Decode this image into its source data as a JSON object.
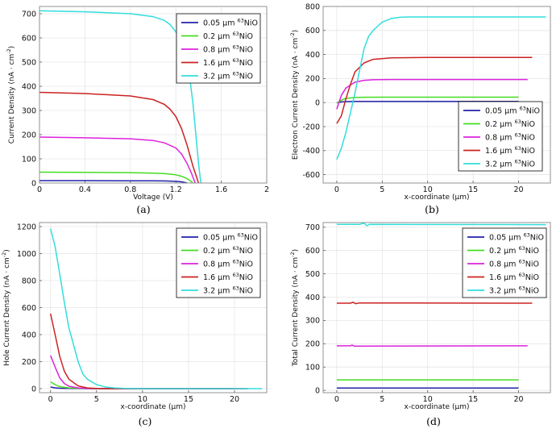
{
  "chart_data": [
    {
      "id": "a",
      "type": "line",
      "panel_label": "(a)",
      "xlabel": "Voltage (V)",
      "ylabel": "Current Density (nA · cm",
      "ylabel_sup": "-2",
      "ylabel_tail": ")",
      "xlim": [
        0,
        2
      ],
      "ylim": [
        0,
        730
      ],
      "xticks": [
        0,
        0.4,
        0.8,
        1.2,
        1.6,
        2
      ],
      "xtick_labels": [
        "0",
        "0.4",
        "0.8",
        "1.2",
        "1.6",
        "2"
      ],
      "yticks": [
        0,
        100,
        200,
        300,
        400,
        500,
        600,
        700
      ],
      "ytick_labels": [
        "0",
        "100",
        "200",
        "300",
        "400",
        "500",
        "600",
        "700"
      ],
      "legend_position": "top-right",
      "series": [
        {
          "name": "0.05 µm",
          "sup": "63",
          "suffix": "NiO",
          "color": "#2222aa",
          "x": [
            0,
            0.4,
            0.8,
            1.0,
            1.1,
            1.15,
            1.2,
            1.25,
            1.28,
            1.3
          ],
          "y": [
            10,
            10,
            9.5,
            9,
            8.5,
            8,
            7,
            5,
            2.5,
            0
          ]
        },
        {
          "name": "0.2 µm",
          "sup": "63",
          "suffix": "NiO",
          "color": "#44dd22",
          "x": [
            0,
            0.4,
            0.8,
            1.0,
            1.1,
            1.2,
            1.25,
            1.3,
            1.33,
            1.35
          ],
          "y": [
            45,
            44,
            43,
            41,
            39,
            34,
            28,
            18,
            8,
            0
          ]
        },
        {
          "name": "0.8 µm",
          "sup": "63",
          "suffix": "NiO",
          "color": "#dd22dd",
          "x": [
            0,
            0.4,
            0.8,
            1.0,
            1.1,
            1.2,
            1.25,
            1.3,
            1.34,
            1.37
          ],
          "y": [
            190,
            187,
            183,
            176,
            166,
            145,
            120,
            80,
            38,
            0
          ]
        },
        {
          "name": "1.6 µm",
          "sup": "63",
          "suffix": "NiO",
          "color": "#cc2222",
          "x": [
            0,
            0.4,
            0.8,
            1.0,
            1.1,
            1.15,
            1.2,
            1.25,
            1.3,
            1.35,
            1.4
          ],
          "y": [
            375,
            370,
            360,
            345,
            325,
            305,
            275,
            225,
            155,
            70,
            0
          ]
        },
        {
          "name": "3.2 µm",
          "sup": "63",
          "suffix": "NiO",
          "color": "#33dddd",
          "x": [
            0,
            0.4,
            0.8,
            1.0,
            1.1,
            1.15,
            1.2,
            1.23,
            1.26,
            1.3,
            1.35,
            1.4,
            1.42
          ],
          "y": [
            712,
            708,
            700,
            688,
            672,
            655,
            625,
            600,
            610,
            520,
            330,
            80,
            0
          ]
        }
      ]
    },
    {
      "id": "b",
      "type": "line",
      "panel_label": "(b)",
      "xlabel": "x-coordinate (µm)",
      "ylabel": "Electron Current Density (nA · cm",
      "ylabel_sup": "-2",
      "ylabel_tail": ")",
      "xlim": [
        -1.5,
        23.5
      ],
      "ylim": [
        -670,
        800
      ],
      "xticks": [
        0,
        5,
        10,
        15,
        20
      ],
      "xtick_labels": [
        "0",
        "5",
        "10",
        "15",
        "20"
      ],
      "yticks": [
        -600,
        -400,
        -200,
        0,
        200,
        400,
        600,
        800
      ],
      "ytick_labels": [
        "-600",
        "-400",
        "-200",
        "0",
        "200",
        "400",
        "600",
        "800"
      ],
      "legend_position": "bottom-right",
      "series": [
        {
          "name": "0.05 µm",
          "sup": "63",
          "suffix": "NiO",
          "color": "#2222aa",
          "x": [
            0,
            0.5,
            1,
            2,
            5,
            10,
            20
          ],
          "y": [
            -2,
            5,
            8,
            10,
            10,
            10,
            10
          ]
        },
        {
          "name": "0.2 µm",
          "sup": "63",
          "suffix": "NiO",
          "color": "#44dd22",
          "x": [
            0,
            0.5,
            1,
            2,
            3,
            5,
            10,
            20
          ],
          "y": [
            -5,
            20,
            35,
            42,
            44,
            45,
            45,
            45
          ]
        },
        {
          "name": "0.8 µm",
          "sup": "63",
          "suffix": "NiO",
          "color": "#dd22dd",
          "x": [
            0,
            0.5,
            1,
            2,
            3,
            4,
            6,
            10,
            21
          ],
          "y": [
            -55,
            60,
            120,
            170,
            185,
            190,
            192,
            192,
            192
          ]
        },
        {
          "name": "1.6 µm",
          "sup": "63",
          "suffix": "NiO",
          "color": "#cc2222",
          "x": [
            0,
            0.5,
            1,
            1.5,
            2,
            3,
            4,
            6,
            10,
            21.5
          ],
          "y": [
            -175,
            -110,
            30,
            150,
            255,
            330,
            360,
            372,
            375,
            375
          ]
        },
        {
          "name": "3.2 µm",
          "sup": "63",
          "suffix": "NiO",
          "color": "#33dddd",
          "x": [
            0,
            0.5,
            1,
            2,
            3,
            3.5,
            4,
            5,
            6,
            7,
            8,
            10,
            23
          ],
          "y": [
            -475,
            -380,
            -250,
            80,
            450,
            550,
            600,
            670,
            700,
            710,
            713,
            713,
            713
          ]
        }
      ]
    },
    {
      "id": "c",
      "type": "line",
      "panel_label": "(c)",
      "xlabel": "x-coordinate (µm)",
      "ylabel": "Hole Current Density (nA · cm",
      "ylabel_sup": "-2",
      "ylabel_tail": ")",
      "xlim": [
        -1.2,
        23.5
      ],
      "ylim": [
        -30,
        1230
      ],
      "xticks": [
        0,
        5,
        10,
        15,
        20
      ],
      "xtick_labels": [
        "0",
        "5",
        "10",
        "15",
        "20"
      ],
      "yticks": [
        0,
        200,
        400,
        600,
        800,
        1000,
        1200
      ],
      "ytick_labels": [
        "0",
        "200",
        "400",
        "600",
        "800",
        "1000",
        "1200"
      ],
      "legend_position": "top-right",
      "series": [
        {
          "name": "0.05 µm",
          "sup": "63",
          "suffix": "NiO",
          "color": "#2222aa",
          "x": [
            0,
            0.5,
            1,
            2,
            4,
            20
          ],
          "y": [
            12,
            6,
            3,
            1,
            0,
            0
          ]
        },
        {
          "name": "0.2 µm",
          "sup": "63",
          "suffix": "NiO",
          "color": "#44dd22",
          "x": [
            0,
            0.5,
            1,
            2,
            3,
            5,
            20
          ],
          "y": [
            50,
            30,
            15,
            5,
            2,
            0,
            0
          ]
        },
        {
          "name": "0.8 µm",
          "sup": "63",
          "suffix": "NiO",
          "color": "#dd22dd",
          "x": [
            0,
            0.5,
            1,
            1.5,
            2,
            3,
            4,
            6,
            21
          ],
          "y": [
            245,
            160,
            80,
            38,
            18,
            5,
            1,
            0,
            0
          ]
        },
        {
          "name": "1.6 µm",
          "sup": "63",
          "suffix": "NiO",
          "color": "#cc2222",
          "x": [
            0,
            0.5,
            1,
            1.5,
            2,
            3,
            4,
            5,
            7,
            21.5
          ],
          "y": [
            555,
            400,
            240,
            130,
            70,
            20,
            5,
            1,
            0,
            0
          ]
        },
        {
          "name": "3.2 µm",
          "sup": "63",
          "suffix": "NiO",
          "color": "#33dddd",
          "x": [
            0,
            0.5,
            1,
            1.5,
            2,
            3,
            3.5,
            4,
            5,
            6,
            7,
            8,
            10,
            23
          ],
          "y": [
            1185,
            1050,
            850,
            640,
            450,
            200,
            110,
            70,
            30,
            12,
            5,
            2,
            0,
            0
          ]
        }
      ]
    },
    {
      "id": "d",
      "type": "line",
      "panel_label": "(d)",
      "xlabel": "x-coordinate (µm)",
      "ylabel": "Total Current Density (nA · cm",
      "ylabel_sup": "-2",
      "ylabel_tail": ")",
      "xlim": [
        -1.5,
        23.5
      ],
      "ylim": [
        -10,
        720
      ],
      "xticks": [
        0,
        5,
        10,
        15,
        20
      ],
      "xtick_labels": [
        "0",
        "5",
        "10",
        "15",
        "20"
      ],
      "yticks": [
        0,
        100,
        200,
        300,
        400,
        500,
        600,
        700
      ],
      "ytick_labels": [
        "0",
        "100",
        "200",
        "300",
        "400",
        "500",
        "600",
        "700"
      ],
      "legend_position": "top-right",
      "series": [
        {
          "name": "0.05 µm",
          "sup": "63",
          "suffix": "NiO",
          "color": "#2222aa",
          "x": [
            0,
            20
          ],
          "y": [
            10,
            10
          ]
        },
        {
          "name": "0.2 µm",
          "sup": "63",
          "suffix": "NiO",
          "color": "#44dd22",
          "x": [
            0,
            20
          ],
          "y": [
            45,
            45
          ]
        },
        {
          "name": "0.8 µm",
          "sup": "63",
          "suffix": "NiO",
          "color": "#dd22dd",
          "x": [
            0,
            1.5,
            1.7,
            1.9,
            21
          ],
          "y": [
            191,
            191,
            194,
            190,
            191
          ]
        },
        {
          "name": "1.6 µm",
          "sup": "63",
          "suffix": "NiO",
          "color": "#cc2222",
          "x": [
            0,
            1.5,
            1.8,
            2.1,
            2.5,
            21.5
          ],
          "y": [
            374,
            374,
            378,
            372,
            375,
            374
          ]
        },
        {
          "name": "3.2 µm",
          "sup": "63",
          "suffix": "NiO",
          "color": "#33dddd",
          "x": [
            0,
            2.5,
            3,
            3.3,
            3.6,
            23
          ],
          "y": [
            712,
            712,
            718,
            706,
            712,
            711
          ]
        }
      ]
    }
  ]
}
